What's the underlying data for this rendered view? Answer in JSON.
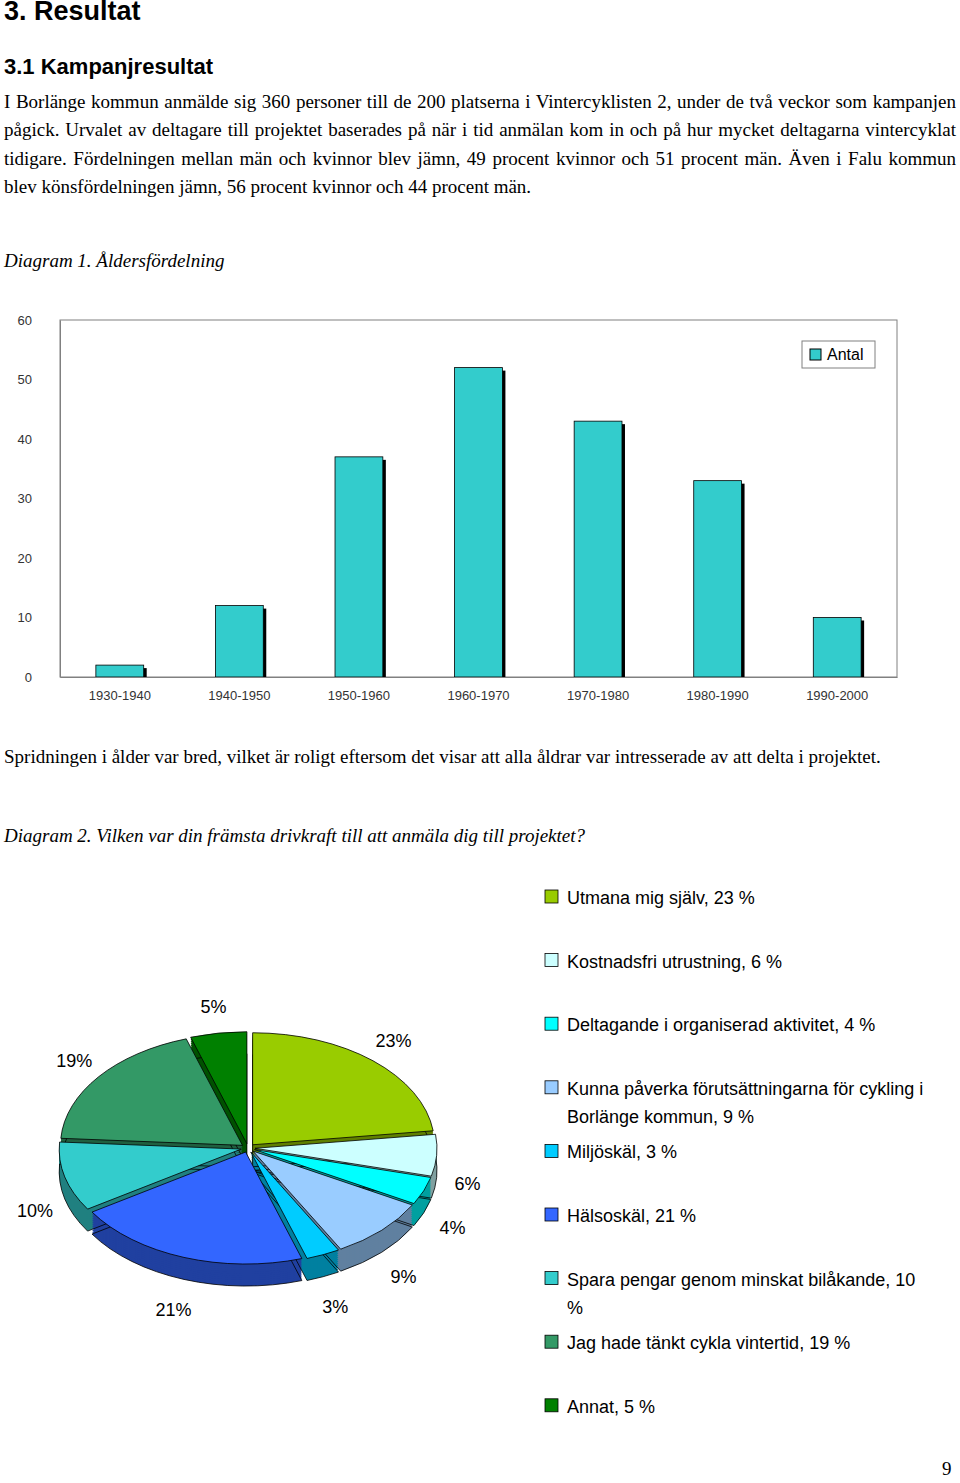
{
  "document": {
    "heading": "3. Resultat",
    "subheading": "3.1 Kampanjresultat",
    "paragraphs": [
      "I Borlänge kommun anmälde sig 360 personer till de 200 platserna i Vintercyklisten 2, under de två veckor som kampanjen pågick. Urvalet av deltagare till projektet baserades på när i tid anmälan kom in och på hur mycket deltagarna vintercyklat tidigare. Fördelningen mellan män och kvinnor blev jämn, 49 procent kvinnor och 51 procent män. Även i Falu kommun blev könsfördelningen jämn, 56 procent kvinnor och 44 procent män.",
      "Spridningen i ålder var bred, vilket är roligt eftersom det visar att alla åldrar var intresserade av att delta i projektet."
    ],
    "page_number": 9
  },
  "chart_data": [
    {
      "type": "bar",
      "title": "Diagram 1. Åldersfördelning",
      "categories": [
        "1930-1940",
        "1940-1950",
        "1950-1960",
        "1960-1970",
        "1970-1980",
        "1980-1990",
        "1990-2000"
      ],
      "series": [
        {
          "name": "Antal",
          "color": "#33cccc",
          "values": [
            2,
            12,
            37,
            52,
            43,
            33,
            10
          ]
        }
      ],
      "ylim": [
        0,
        60
      ],
      "yticks": [
        0,
        10,
        20,
        30,
        40,
        50,
        60
      ],
      "grid": false,
      "legend": "top-right"
    },
    {
      "type": "pie",
      "title": "Diagram 2. Vilken var din främsta drivkraft till att anmäla dig till projektet?",
      "categories": [
        "Utmana mig själv, 23 %",
        "Kostnadsfri utrustning, 6 %",
        "Deltagande i organiserad aktivitet, 4 %",
        "Kunna påverka förutsättningarna för cykling i Borlänge kommun, 9 %",
        "Miljöskäl, 3 %",
        "Hälsoskäl, 21 %",
        "Spara pengar genom minskat bilåkande, 10 %",
        "Jag hade tänkt cykla vintertid, 19 %",
        "Annat, 5 %"
      ],
      "values": [
        23,
        6,
        4,
        9,
        3,
        21,
        10,
        19,
        5
      ],
      "value_labels": [
        "23%",
        "6%",
        "4%",
        "9%",
        "3%",
        "21%",
        "10%",
        "19%",
        "5%"
      ],
      "colors": [
        "#99cc00",
        "#ccffff",
        "#00ffff",
        "#99ccff",
        "#00ccff",
        "#3366ff",
        "#33cccc",
        "#339966",
        "#008000"
      ],
      "data_labels": true,
      "legend": "right"
    }
  ]
}
